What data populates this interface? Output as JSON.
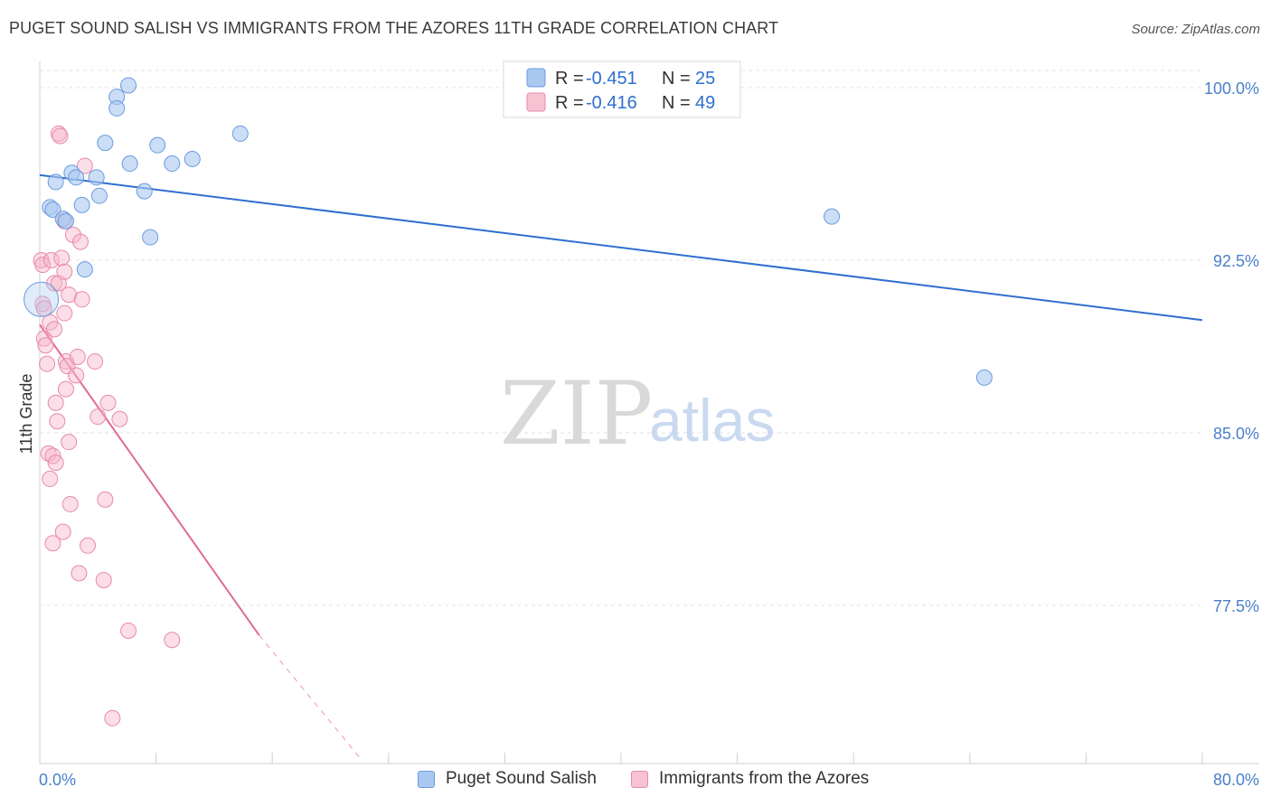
{
  "title": "PUGET SOUND SALISH VS IMMIGRANTS FROM THE AZORES 11TH GRADE CORRELATION CHART",
  "source": "Source: ZipAtlas.com",
  "watermark": {
    "zip": "ZIP",
    "atlas": "atlas"
  },
  "colors": {
    "blue_fill": "#a9c8f0",
    "blue_stroke": "#6a9be0",
    "blue_line": "#2f6fcf",
    "pink_fill": "#f7b6c9",
    "pink_stroke": "#e88aa8",
    "pink_line": "#e06a98",
    "grid": "#e3e3e3",
    "axis_label": "#4a7fc9"
  },
  "legend": {
    "rows": [
      {
        "r_label": "R =",
        "r_value": "-0.451",
        "n_label": "N =",
        "n_value": "25"
      },
      {
        "r_label": "R =",
        "r_value": "-0.416",
        "n_label": "N =",
        "n_value": "49"
      }
    ]
  },
  "chart_data": {
    "type": "scatter",
    "title": "PUGET SOUND SALISH VS IMMIGRANTS FROM THE AZORES 11TH GRADE CORRELATION CHART",
    "xlabel": "",
    "ylabel": "11th Grade",
    "xlim": [
      0,
      80
    ],
    "ylim": [
      71.0,
      101.5
    ],
    "x_tick_labels": {
      "left": "0.0%",
      "right": "80.0%"
    },
    "y_ticks": [
      100.0,
      92.5,
      85.0,
      77.5
    ],
    "y_tick_labels": [
      "100.0%",
      "92.5%",
      "85.0%",
      "77.5%"
    ],
    "series": [
      {
        "name": "Puget Sound Salish",
        "color": "blue",
        "r": -0.451,
        "n": 25,
        "trend": {
          "x0": 0,
          "y0": 96.2,
          "x1": 80,
          "y1": 89.9
        },
        "points": [
          [
            0.1,
            90.8
          ],
          [
            0.7,
            94.8
          ],
          [
            0.9,
            94.7
          ],
          [
            1.1,
            95.9
          ],
          [
            1.6,
            94.3
          ],
          [
            1.8,
            94.2
          ],
          [
            2.2,
            96.3
          ],
          [
            2.5,
            96.1
          ],
          [
            2.9,
            94.9
          ],
          [
            3.1,
            92.1
          ],
          [
            3.9,
            96.1
          ],
          [
            4.1,
            95.3
          ],
          [
            4.5,
            97.6
          ],
          [
            5.3,
            99.6
          ],
          [
            5.3,
            99.1
          ],
          [
            6.1,
            100.1
          ],
          [
            6.2,
            96.7
          ],
          [
            7.2,
            95.5
          ],
          [
            7.6,
            93.5
          ],
          [
            8.1,
            97.5
          ],
          [
            9.1,
            96.7
          ],
          [
            10.5,
            96.9
          ],
          [
            13.8,
            98.0
          ],
          [
            54.5,
            94.4
          ],
          [
            65.0,
            87.4
          ]
        ]
      },
      {
        "name": "Immigrants from the Azores",
        "color": "pink",
        "r": -0.416,
        "n": 49,
        "trend": {
          "x0": 0,
          "y0": 89.7,
          "x1": 15.1,
          "y1": 76.2,
          "dash_x1": 22.0,
          "dash_y1": 70.9
        },
        "points": [
          [
            0.1,
            92.5
          ],
          [
            0.2,
            92.3
          ],
          [
            0.2,
            90.6
          ],
          [
            0.3,
            90.4
          ],
          [
            0.3,
            89.1
          ],
          [
            0.4,
            88.8
          ],
          [
            0.5,
            88.0
          ],
          [
            0.6,
            84.1
          ],
          [
            0.7,
            89.8
          ],
          [
            0.7,
            83.0
          ],
          [
            0.8,
            92.5
          ],
          [
            0.9,
            84.0
          ],
          [
            0.9,
            80.2
          ],
          [
            1.0,
            91.5
          ],
          [
            1.0,
            89.5
          ],
          [
            1.1,
            86.3
          ],
          [
            1.1,
            83.7
          ],
          [
            1.2,
            85.5
          ],
          [
            1.3,
            91.5
          ],
          [
            1.3,
            98.0
          ],
          [
            1.4,
            97.9
          ],
          [
            1.5,
            92.6
          ],
          [
            1.6,
            80.7
          ],
          [
            1.7,
            94.2
          ],
          [
            1.7,
            92.0
          ],
          [
            1.7,
            90.2
          ],
          [
            1.8,
            88.1
          ],
          [
            1.8,
            86.9
          ],
          [
            1.9,
            87.9
          ],
          [
            2.0,
            91.0
          ],
          [
            2.0,
            84.6
          ],
          [
            2.1,
            81.9
          ],
          [
            2.3,
            93.6
          ],
          [
            2.5,
            87.5
          ],
          [
            2.6,
            88.3
          ],
          [
            2.7,
            78.9
          ],
          [
            2.8,
            93.3
          ],
          [
            2.9,
            90.8
          ],
          [
            3.1,
            96.6
          ],
          [
            3.3,
            80.1
          ],
          [
            3.8,
            88.1
          ],
          [
            4.0,
            85.7
          ],
          [
            4.4,
            78.6
          ],
          [
            4.5,
            82.1
          ],
          [
            4.7,
            86.3
          ],
          [
            5.0,
            72.6
          ],
          [
            5.5,
            85.6
          ],
          [
            6.1,
            76.4
          ],
          [
            9.1,
            76.0
          ]
        ]
      }
    ],
    "legend_position": "top-center",
    "grid": true
  }
}
